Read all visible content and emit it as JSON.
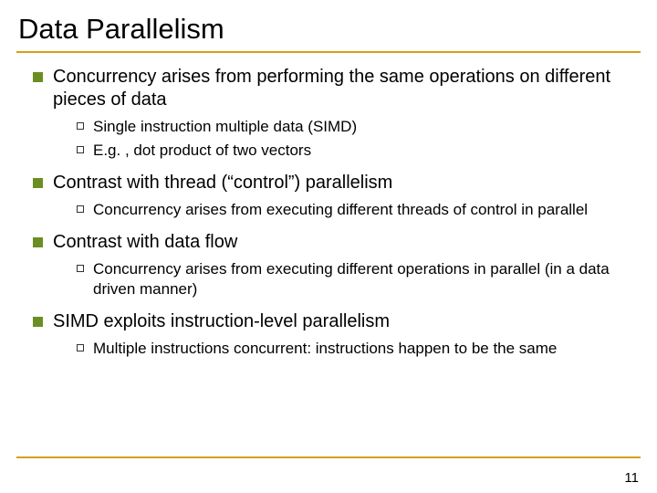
{
  "colors": {
    "accent": "#d4a017",
    "bullet1": "#6b8e23",
    "bullet2_border": "#333333",
    "text": "#000000",
    "background": "#ffffff"
  },
  "typography": {
    "title_fontsize": 31,
    "level1_fontsize": 20,
    "level2_fontsize": 17,
    "pagenum_fontsize": 15
  },
  "title": "Data Parallelism",
  "bullets": [
    {
      "text": "Concurrency arises from performing the same operations on different pieces of data",
      "sub": [
        "Single instruction multiple data (SIMD)",
        "E.g. , dot product of two vectors"
      ]
    },
    {
      "text": "Contrast with thread (“control”) parallelism",
      "sub": [
        "Concurrency arises from executing different threads of control in parallel"
      ]
    },
    {
      "text": "Contrast with data flow",
      "sub": [
        "Concurrency arises from executing different operations in parallel (in a data driven manner)"
      ]
    },
    {
      "text": "SIMD exploits instruction-level parallelism",
      "sub": [
        "Multiple instructions concurrent: instructions happen to be the same"
      ]
    }
  ],
  "page_number": "11"
}
